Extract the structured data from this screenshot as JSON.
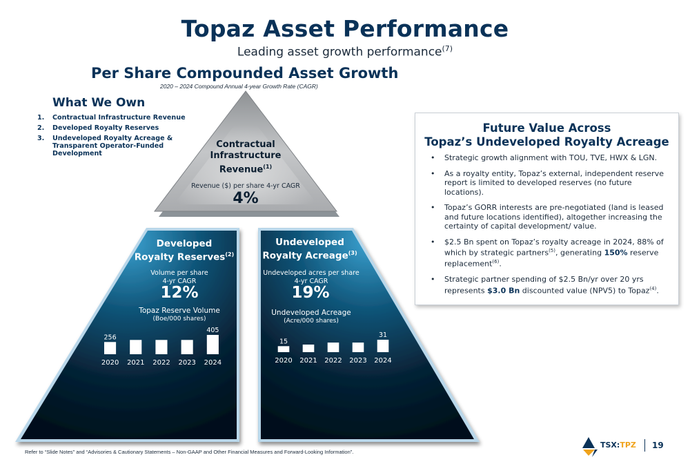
{
  "title": "Topaz Asset Performance",
  "subtitle": {
    "text": "Leading asset growth performance",
    "note": "(7)"
  },
  "section": {
    "heading": "Per Share Compounded Asset Growth",
    "subheading": "2020 – 2024 Compound Annual 4-year Growth Rate (CAGR)"
  },
  "what_we_own": {
    "heading": "What We Own",
    "items": [
      {
        "num": "1.",
        "text": "Contractual Infrastructure Revenue"
      },
      {
        "num": "2.",
        "text": "Developed Royalty Reserves"
      },
      {
        "num": "3.",
        "text": "Undeveloped Royalty Acreage & Transparent Operator-Funded Development"
      }
    ]
  },
  "top_triangle": {
    "title_line1": "Contractual",
    "title_line2": "Infrastructure",
    "title_line3": "Revenue",
    "title_note": "(1)",
    "metric_label": "Revenue ($) per share 4-yr CAGR",
    "metric_value": "4%"
  },
  "left_panel": {
    "title_line1": "Developed",
    "title_line2": "Royalty Reserves",
    "title_note": "(2)",
    "metric_label_line1": "Volume per share",
    "metric_label_line2": "4-yr CAGR",
    "metric_value": "12%",
    "chart_title": "Topaz Reserve Volume",
    "chart_unit": "(Boe/000 shares)"
  },
  "right_panel": {
    "title_line1": "Undeveloped",
    "title_line2": "Royalty Acreage",
    "title_note": "(3)",
    "metric_label_line1": "Undeveloped acres per share",
    "metric_label_line2": "4-yr CAGR",
    "metric_value": "19%",
    "chart_title": "Undeveloped Acreage",
    "chart_unit": "(Acre/000 shares)"
  },
  "chart_data": [
    {
      "type": "bar",
      "title": "Topaz Reserve Volume",
      "ylabel": "(Boe/000 shares)",
      "categories": [
        "2020",
        "2021",
        "2022",
        "2023",
        "2024"
      ],
      "values": [
        256,
        300,
        300,
        300,
        405
      ],
      "data_labels": [
        "256",
        "",
        "",
        "",
        "405"
      ],
      "bar_color": "#ffffff"
    },
    {
      "type": "bar",
      "title": "Undeveloped Acreage",
      "ylabel": "(Acre/000 shares)",
      "categories": [
        "2020",
        "2021",
        "2022",
        "2023",
        "2024"
      ],
      "values": [
        15,
        19,
        24,
        24,
        31
      ],
      "data_labels": [
        "15",
        "",
        "",
        "",
        "31"
      ],
      "bar_color": "#ffffff"
    }
  ],
  "future_box": {
    "title_line1": "Future Value Across",
    "title_line2": "Topaz’s Undeveloped Royalty Acreage",
    "bullets": [
      {
        "parts": [
          {
            "t": "Strategic growth alignment with TOU, TVE, HWX & LGN."
          }
        ]
      },
      {
        "parts": [
          {
            "t": "As a royalty entity, Topaz’s external, independent reserve report is limited to developed reserves (no future locations)."
          }
        ]
      },
      {
        "parts": [
          {
            "t": "Topaz’s GORR interests are pre-negotiated (land is leased and future locations identified), altogether increasing the certainty of capital development/ value."
          }
        ]
      },
      {
        "parts": [
          {
            "t": "$2.5 Bn spent on Topaz’s royalty acreage in 2024, 88% of which by strategic partners"
          },
          {
            "t": "(5)",
            "sup": true
          },
          {
            "t": ", generating "
          },
          {
            "t": "150%",
            "bold": true
          },
          {
            "t": " reserve replacement"
          },
          {
            "t": "(6)",
            "sup": true
          },
          {
            "t": "."
          }
        ]
      },
      {
        "parts": [
          {
            "t": "Strategic partner spending of $2.5 Bn/yr over 20 yrs represents "
          },
          {
            "t": "$3.0 Bn",
            "bold": true
          },
          {
            "t": " discounted value (NPV5) to Topaz"
          },
          {
            "t": "(4)",
            "sup": true
          },
          {
            "t": "."
          }
        ]
      }
    ]
  },
  "footer": {
    "note": "Refer to “Slide Notes” and “Advisories & Cautionary Statements – Non-GAAP and Other Financial Measures and Forward-Looking Information”.",
    "ticker_prefix": "TSX:",
    "ticker_symbol": "TPZ",
    "page_number": "19"
  },
  "colors": {
    "navy": "#0a3258",
    "accent": "#f0a31c",
    "panel_dark": "#051a2b",
    "panel_glow": "#2f93c2",
    "triangle_grey": "#b7b9bc"
  }
}
